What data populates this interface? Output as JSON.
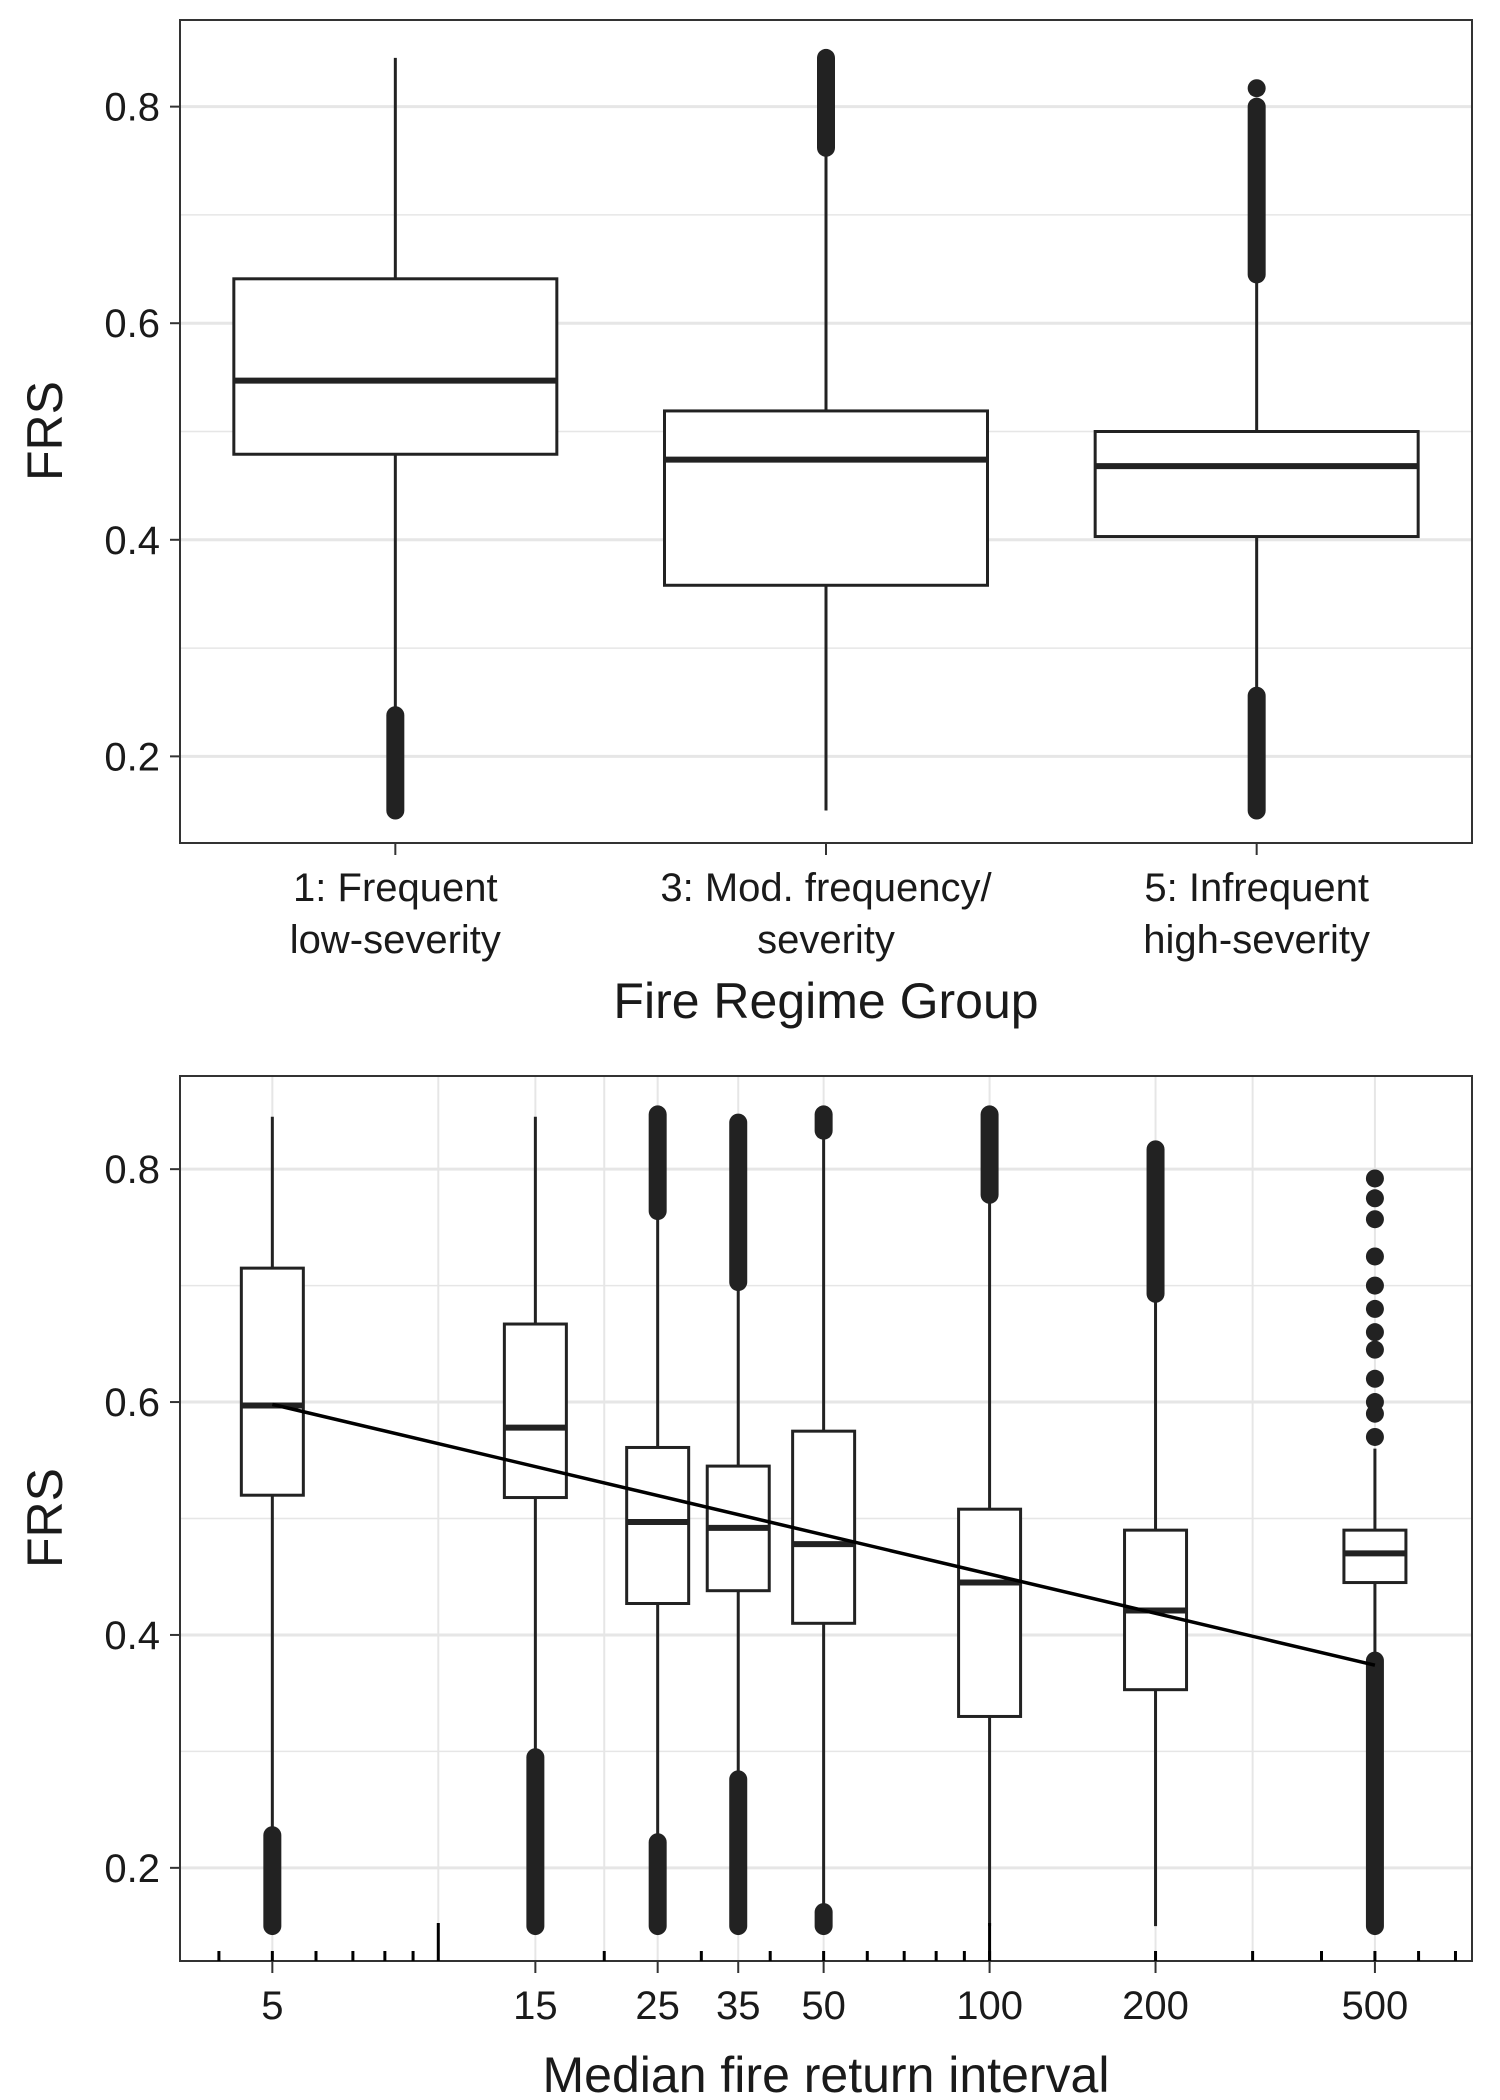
{
  "chart_data": [
    {
      "type": "box",
      "xlabel": "Fire Regime Group",
      "ylabel": "FRS",
      "ylim": [
        0.12,
        0.88
      ],
      "yticks": [
        0.2,
        0.4,
        0.6,
        0.8
      ],
      "y_minor_gridlines": [
        0.3,
        0.5,
        0.7
      ],
      "grid": true,
      "colors": {
        "box_stroke": "#222222",
        "box_fill": "#ffffff",
        "outlier": "#222222",
        "grid": "#e6e6e6"
      },
      "categories": [
        {
          "label_lines": [
            "1: Frequent",
            "low-severity"
          ],
          "whisker_low": 0.24,
          "q1": 0.479,
          "median": 0.547,
          "q3": 0.641,
          "whisker_high": 0.845,
          "outliers": [
            {
              "from": 0.15,
              "to": 0.238
            }
          ]
        },
        {
          "label_lines": [
            "3: Mod. frequency/",
            "severity"
          ],
          "whisker_low": 0.15,
          "q1": 0.358,
          "median": 0.474,
          "q3": 0.519,
          "whisker_high": 0.76,
          "outliers": [
            {
              "from": 0.762,
              "to": 0.845
            }
          ]
        },
        {
          "label_lines": [
            "5: Infrequent",
            "high-severity"
          ],
          "whisker_low": 0.26,
          "q1": 0.403,
          "median": 0.468,
          "q3": 0.5,
          "whisker_high": 0.643,
          "outliers": [
            {
              "from": 0.15,
              "to": 0.256
            },
            {
              "from": 0.645,
              "to": 0.8
            },
            {
              "at": 0.817
            }
          ]
        }
      ]
    },
    {
      "type": "box",
      "xlabel": "Median fire return interval",
      "ylabel": "FRS",
      "x_scale": "log",
      "xlim": [
        3.4,
        750
      ],
      "ylim": [
        0.12,
        0.88
      ],
      "xticks": [
        5,
        15,
        25,
        35,
        50,
        100,
        200,
        500
      ],
      "x_gridlines": [
        5,
        10,
        15,
        20,
        25,
        35,
        50,
        100,
        200,
        300,
        500
      ],
      "x_minor_ticks": [
        4,
        5,
        6,
        7,
        8,
        9,
        20,
        30,
        40,
        50,
        60,
        70,
        80,
        90,
        100,
        200,
        300,
        400,
        500,
        600,
        700
      ],
      "x_long_ticks": [
        10,
        100
      ],
      "yticks": [
        0.2,
        0.4,
        0.6,
        0.8
      ],
      "y_minor_gridlines": [
        0.3,
        0.5,
        0.7
      ],
      "grid": true,
      "colors": {
        "box_stroke": "#222222",
        "box_fill": "#ffffff",
        "outlier": "#222222",
        "grid": "#e6e6e6",
        "trend": "#000000"
      },
      "trend_line": {
        "x": [
          5,
          500
        ],
        "y": [
          0.598,
          0.374
        ]
      },
      "boxes": [
        {
          "x": 5,
          "whisker_low": 0.23,
          "q1": 0.52,
          "median": 0.597,
          "q3": 0.715,
          "whisker_high": 0.845,
          "outliers": [
            {
              "from": 0.15,
              "to": 0.228
            }
          ]
        },
        {
          "x": 15,
          "whisker_low": 0.3,
          "q1": 0.518,
          "median": 0.578,
          "q3": 0.667,
          "whisker_high": 0.845,
          "outliers": [
            {
              "from": 0.15,
              "to": 0.295
            }
          ]
        },
        {
          "x": 25,
          "whisker_low": 0.225,
          "q1": 0.427,
          "median": 0.497,
          "q3": 0.561,
          "whisker_high": 0.762,
          "outliers": [
            {
              "from": 0.15,
              "to": 0.222
            },
            {
              "from": 0.764,
              "to": 0.847
            }
          ]
        },
        {
          "x": 35,
          "whisker_low": 0.28,
          "q1": 0.438,
          "median": 0.492,
          "q3": 0.545,
          "whisker_high": 0.7,
          "outliers": [
            {
              "from": 0.15,
              "to": 0.276
            },
            {
              "from": 0.703,
              "to": 0.84
            }
          ]
        },
        {
          "x": 50,
          "whisker_low": 0.165,
          "q1": 0.41,
          "median": 0.478,
          "q3": 0.575,
          "whisker_high": 0.83,
          "outliers": [
            {
              "from": 0.15,
              "to": 0.162
            },
            {
              "from": 0.833,
              "to": 0.847
            }
          ]
        },
        {
          "x": 100,
          "whisker_low": 0.15,
          "q1": 0.33,
          "median": 0.445,
          "q3": 0.508,
          "whisker_high": 0.775,
          "outliers": [
            {
              "from": 0.778,
              "to": 0.847
            }
          ]
        },
        {
          "x": 200,
          "whisker_low": 0.15,
          "q1": 0.353,
          "median": 0.421,
          "q3": 0.49,
          "whisker_high": 0.69,
          "outliers": [
            {
              "from": 0.693,
              "to": 0.817
            }
          ]
        },
        {
          "x": 500,
          "whisker_low": 0.38,
          "q1": 0.445,
          "median": 0.47,
          "q3": 0.49,
          "whisker_high": 0.56,
          "outliers": [
            {
              "from": 0.15,
              "to": 0.378
            },
            {
              "at": 0.57
            },
            {
              "at": 0.59
            },
            {
              "at": 0.6
            },
            {
              "at": 0.62
            },
            {
              "at": 0.645
            },
            {
              "at": 0.66
            },
            {
              "at": 0.68
            },
            {
              "at": 0.7
            },
            {
              "at": 0.725
            },
            {
              "at": 0.757
            },
            {
              "at": 0.775
            },
            {
              "at": 0.792
            }
          ]
        }
      ]
    }
  ]
}
